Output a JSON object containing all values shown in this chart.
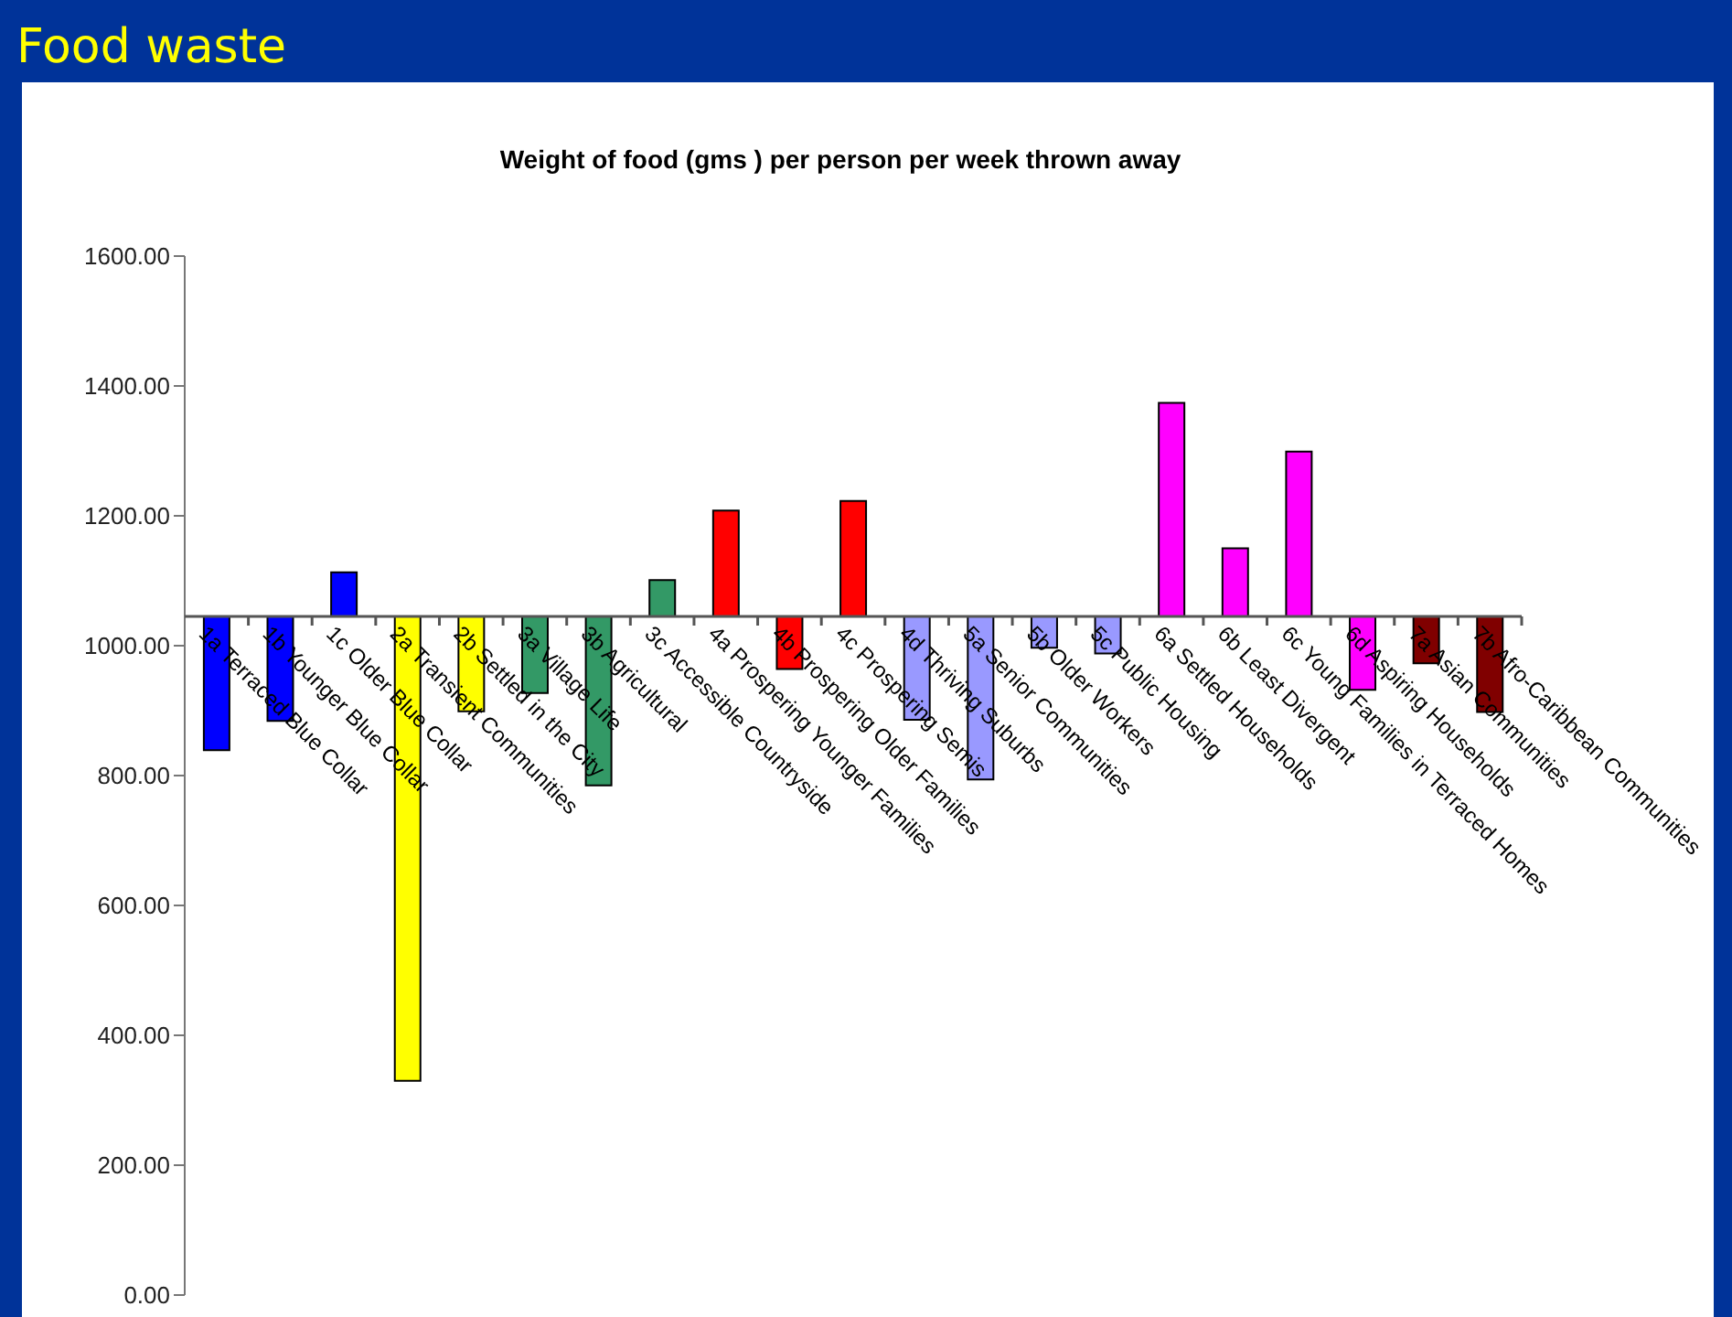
{
  "chart_data": {
    "type": "bar",
    "title": "Food waste",
    "subtitle": "Weight of food (gms ) per person per week thrown away",
    "categories": [
      "1a Terraced Blue Collar",
      "1b Younger Blue Collar",
      "1c Older Blue Collar",
      "2a Transient Communities",
      "2b Settled in the City",
      "3a Village Life",
      "3b Agricultural",
      "3c Accessible Countryside",
      "4a Prospering Younger Families",
      "4b Prospering Older Families",
      "4c Prospering Semis",
      "4d Thriving Suburbs",
      "5a Senior Communities",
      "5b Older Workers",
      "5c Public Housing",
      "6a Settled Households",
      "6b Least Divergent",
      "6c Young Families in Terraced Homes",
      "6d Aspiring Households",
      "7a Asian Communities",
      "7b Afro-Caribbean Communities"
    ],
    "base": [
      1045,
      1045,
      1045,
      1045,
      1045,
      1045,
      1045,
      1045,
      1045,
      1045,
      1045,
      1045,
      1045,
      1045,
      1045,
      1045,
      1045,
      1045,
      1045,
      1045,
      1045
    ],
    "values": [
      -206,
      -161,
      68,
      -715,
      -146,
      -118,
      -260,
      56,
      163,
      -81,
      178,
      -159,
      -251,
      -48,
      -57,
      329,
      105,
      254,
      -113,
      -72,
      -147
    ],
    "colors": [
      "#0000ff",
      "#0000ff",
      "#0000ff",
      "#ffff00",
      "#ffff00",
      "#339966",
      "#339966",
      "#339966",
      "#ff0000",
      "#ff0000",
      "#ff0000",
      "#9999ff",
      "#9999ff",
      "#9999ff",
      "#9999ff",
      "#ff00ff",
      "#ff00ff",
      "#ff00ff",
      "#ff00ff",
      "#800000",
      "#800000"
    ],
    "ylim": [
      0,
      1600
    ],
    "yticks": [
      {
        "value": 0,
        "label": "0.00"
      },
      {
        "value": 200,
        "label": "200.00"
      },
      {
        "value": 400,
        "label": "400.00"
      },
      {
        "value": 600,
        "label": "600.00"
      },
      {
        "value": 800,
        "label": "800.00"
      },
      {
        "value": 1000,
        "label": "1000.00"
      },
      {
        "value": 1200,
        "label": "1200.00"
      },
      {
        "value": 1400,
        "label": "1400.00"
      },
      {
        "value": 1600,
        "label": "1600.00"
      }
    ],
    "grid": false,
    "legend": false
  }
}
